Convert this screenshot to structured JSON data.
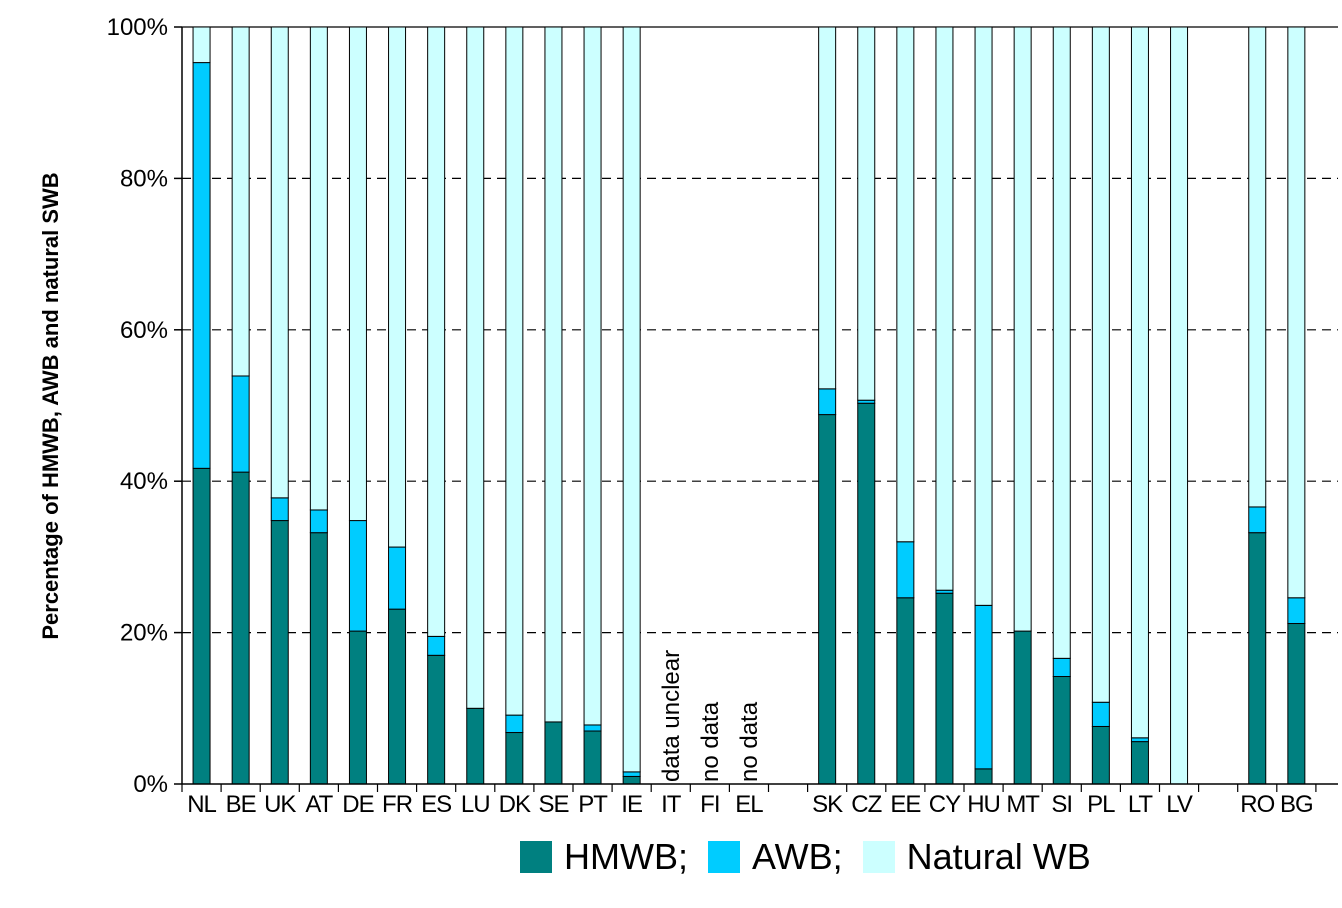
{
  "chart_data": {
    "type": "bar",
    "stacked": true,
    "normalized": true,
    "ylabel": "Percentage of HMWB, AWB and natural SWB",
    "ylim": [
      0,
      100
    ],
    "yticks": [
      "0%",
      "20%",
      "40%",
      "60%",
      "80%",
      "100%"
    ],
    "grid": "dashed horizontal",
    "legend_position": "bottom",
    "categories": [
      "NL",
      "BE",
      "UK",
      "AT",
      "DE",
      "FR",
      "ES",
      "LU",
      "DK",
      "SE",
      "PT",
      "IE",
      "IT",
      "FI",
      "EL",
      "",
      "SK",
      "CZ",
      "EE",
      "CY",
      "HU",
      "MT",
      "SI",
      "PL",
      "LT",
      "LV",
      "",
      "RO",
      "BG"
    ],
    "series": [
      {
        "name": "HMWB",
        "color": "#008080",
        "values": [
          41.7,
          41.2,
          34.8,
          33.2,
          20.2,
          23.1,
          17.0,
          10.0,
          6.8,
          8.2,
          7.0,
          1.0,
          null,
          null,
          null,
          null,
          48.8,
          50.3,
          24.6,
          25.2,
          2.0,
          20.2,
          14.2,
          7.6,
          5.6,
          0.0,
          null,
          33.2,
          21.2
        ]
      },
      {
        "name": "AWB",
        "color": "#00CCFF",
        "values": [
          53.6,
          12.7,
          3.0,
          3.0,
          14.6,
          8.2,
          2.5,
          0.0,
          2.3,
          0.0,
          0.8,
          0.6,
          null,
          null,
          null,
          null,
          3.4,
          0.4,
          7.4,
          0.4,
          21.6,
          0.0,
          2.4,
          3.2,
          0.5,
          0.0,
          null,
          3.4,
          3.4
        ]
      },
      {
        "name": "Natural WB",
        "color": "#CCFFFF",
        "values": [
          4.7,
          46.1,
          62.2,
          63.8,
          65.2,
          68.7,
          80.5,
          90.0,
          90.9,
          91.8,
          92.2,
          98.4,
          null,
          null,
          null,
          null,
          47.8,
          49.3,
          68.0,
          74.4,
          76.4,
          79.8,
          83.4,
          89.2,
          93.9,
          100.0,
          null,
          63.4,
          75.4
        ]
      }
    ],
    "annotations": [
      {
        "category": "IT",
        "text": "data unclear"
      },
      {
        "category": "FI",
        "text": "no data"
      },
      {
        "category": "EL",
        "text": "no data"
      }
    ]
  },
  "legend": {
    "items": [
      {
        "label": "HMWB;",
        "color": "#008080"
      },
      {
        "label": "AWB;",
        "color": "#00CCFF"
      },
      {
        "label": "Natural WB",
        "color": "#CCFFFF"
      }
    ]
  }
}
